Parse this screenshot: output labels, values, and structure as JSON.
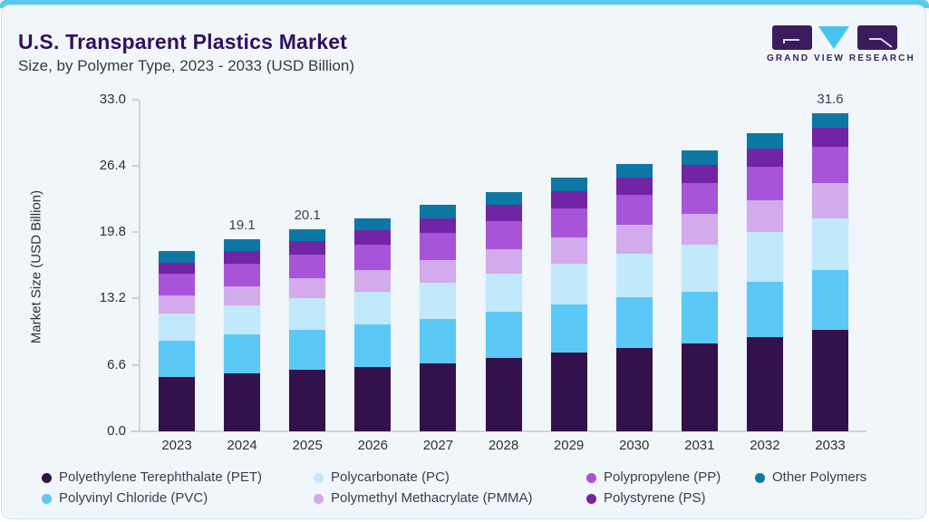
{
  "header": {
    "title": "U.S. Transparent Plastics Market",
    "subtitle": "Size, by Polymer Type, 2023 - 2033 (USD Billion)"
  },
  "logo": {
    "text": "GRAND VIEW RESEARCH",
    "block_color": "#3b1b5e",
    "triangle_color": "#45c5f1",
    "text_color": "#3b2063"
  },
  "theme": {
    "top_strip": "#5bc8f0",
    "card_bg": "#f1f6fa",
    "card_border": "#d9dfe8",
    "axis_line": "#cfd4dc",
    "title_color": "#311061"
  },
  "chart_data": {
    "type": "bar",
    "stacked": true,
    "title": "U.S. Transparent Plastics Market",
    "subtitle": "Size, by Polymer Type, 2023 - 2033 (USD Billion)",
    "xlabel": "",
    "ylabel": "Market Size (USD Billion)",
    "ylim": [
      0,
      33
    ],
    "ytick_values": [
      0,
      6.6,
      13.2,
      19.8,
      26.4,
      33.0
    ],
    "ytick_labels": [
      "0.0",
      "6.6",
      "13.2",
      "19.8",
      "26.4",
      "33.0"
    ],
    "grid": false,
    "legend_position": "bottom",
    "categories": [
      "2023",
      "2024",
      "2025",
      "2026",
      "2027",
      "2028",
      "2029",
      "2030",
      "2031",
      "2032",
      "2033"
    ],
    "series": [
      {
        "name": "Polyethylene Terephthalate (PET)",
        "color": "#33124b",
        "values": [
          5.4,
          5.8,
          6.1,
          6.4,
          6.8,
          7.3,
          7.8,
          8.3,
          8.7,
          9.4,
          10.1
        ]
      },
      {
        "name": "Polyvinyl Chloride (PVC)",
        "color": "#5cc8f5",
        "values": [
          3.6,
          3.8,
          4.0,
          4.2,
          4.4,
          4.6,
          4.8,
          5.0,
          5.2,
          5.5,
          5.9
        ]
      },
      {
        "name": "Polycarbonate (PC)",
        "color": "#c2e9fb",
        "values": [
          2.7,
          2.9,
          3.1,
          3.3,
          3.6,
          3.8,
          4.1,
          4.4,
          4.7,
          4.9,
          5.2
        ]
      },
      {
        "name": "Polymethyl Methacrylate (PMMA)",
        "color": "#d3aaec",
        "values": [
          1.8,
          1.9,
          2.0,
          2.1,
          2.2,
          2.4,
          2.6,
          2.8,
          3.0,
          3.2,
          3.5
        ]
      },
      {
        "name": "Polypropylene (PP)",
        "color": "#a854d8",
        "values": [
          2.2,
          2.3,
          2.4,
          2.6,
          2.7,
          2.8,
          2.9,
          3.0,
          3.1,
          3.3,
          3.6
        ]
      },
      {
        "name": "Polystyrene (PS)",
        "color": "#7124a3",
        "values": [
          1.1,
          1.2,
          1.3,
          1.4,
          1.5,
          1.6,
          1.7,
          1.7,
          1.8,
          1.8,
          1.9
        ]
      },
      {
        "name": "Other Polymers",
        "color": "#0d77a3",
        "values": [
          1.1,
          1.2,
          1.2,
          1.2,
          1.3,
          1.3,
          1.3,
          1.4,
          1.4,
          1.5,
          1.4
        ]
      }
    ],
    "totals": [
      17.9,
      19.1,
      20.1,
      21.2,
      22.5,
      23.8,
      25.2,
      26.6,
      27.9,
      29.6,
      31.6
    ],
    "bar_total_labels": [
      {
        "category": "2024",
        "label": "19.1"
      },
      {
        "category": "2025",
        "label": "20.1"
      },
      {
        "category": "2033",
        "label": "31.6"
      }
    ]
  },
  "legend": {
    "rows": [
      [
        {
          "label": "Polyethylene Terephthalate (PET)",
          "color": "#33124b"
        },
        {
          "label": "Polycarbonate (PC)",
          "color": "#c2e9fb"
        },
        {
          "label": "Polypropylene (PP)",
          "color": "#a854d8"
        },
        {
          "label": "Other Polymers",
          "color": "#0d77a3"
        }
      ],
      [
        {
          "label": "Polyvinyl Chloride (PVC)",
          "color": "#5cc8f5"
        },
        {
          "label": "Polymethyl Methacrylate (PMMA)",
          "color": "#d3aaec"
        },
        {
          "label": "Polystyrene (PS)",
          "color": "#7124a3"
        }
      ]
    ]
  }
}
